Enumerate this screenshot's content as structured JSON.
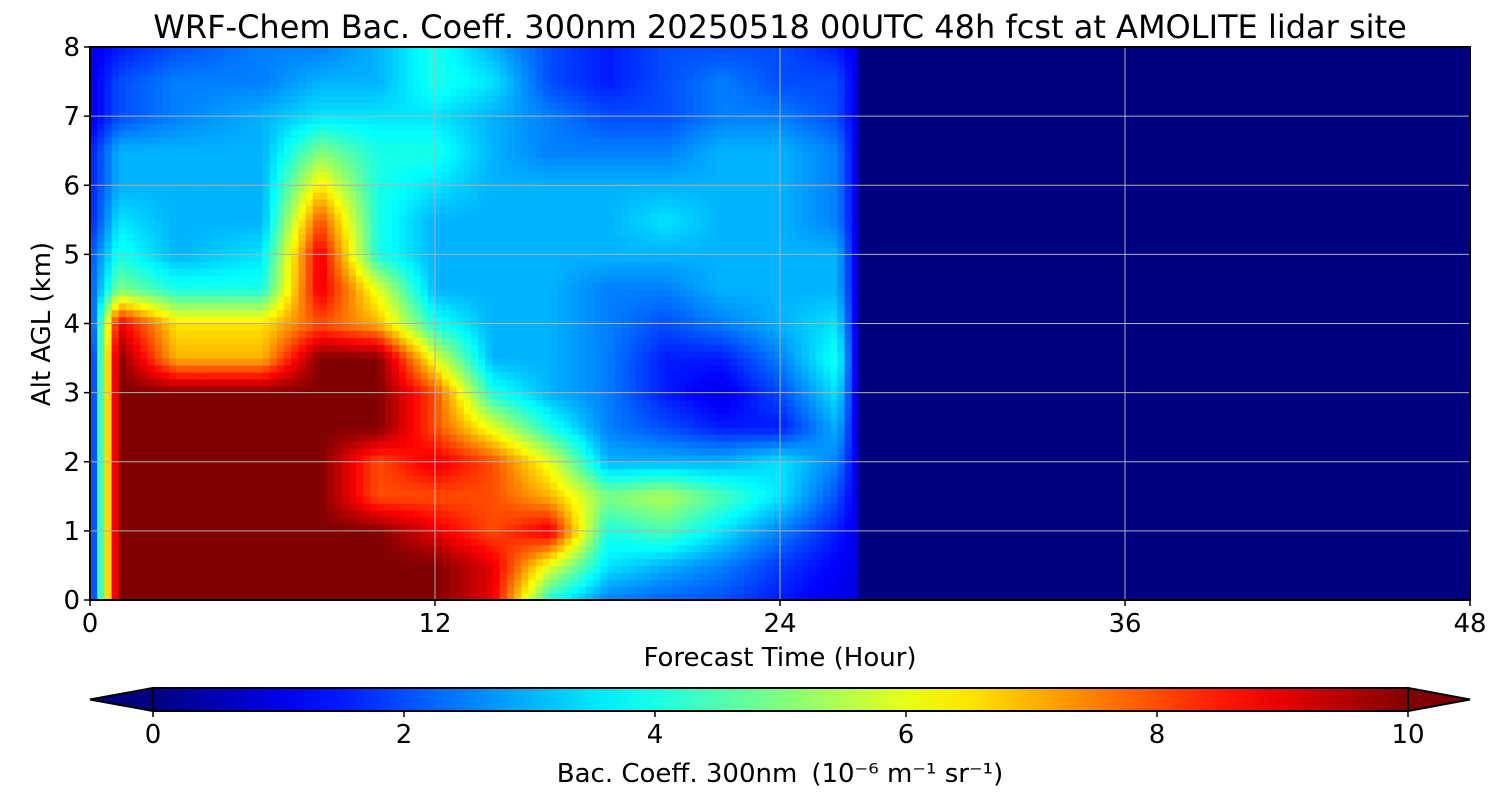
{
  "chart_data": {
    "type": "heatmap",
    "title": "WRF-Chem Bac. Coeff. 300nm  20250518 00UTC 48h fcst at AMOLITE lidar site",
    "xlabel": "Forecast Time (Hour)",
    "ylabel": "Alt AGL (km)",
    "xlim": [
      0,
      48
    ],
    "ylim": [
      0,
      8
    ],
    "xticks": [
      0,
      12,
      24,
      36,
      48
    ],
    "yticks": [
      0,
      1,
      2,
      3,
      4,
      5,
      6,
      7,
      8
    ],
    "grid": true,
    "colormap": "jet",
    "colorbar": {
      "label": "Bac. Coeff. 300nm",
      "unit": "(10⁻⁶ m⁻¹ sr⁻¹)",
      "range": [
        0,
        10
      ],
      "ticks": [
        0,
        2,
        4,
        6,
        8,
        10
      ],
      "extend": "both",
      "orientation": "horizontal"
    },
    "data_end_hour": 26.7,
    "x": [
      0,
      1,
      3,
      6,
      8,
      10,
      12,
      14,
      16,
      18,
      20,
      22,
      24,
      26,
      26.7
    ],
    "y": [
      0,
      0.5,
      1,
      1.5,
      2,
      2.5,
      3,
      3.5,
      4,
      4.5,
      5,
      5.5,
      6,
      6.5,
      7,
      7.5,
      8
    ],
    "z": [
      [
        1.0,
        10,
        10,
        10,
        10,
        10,
        10,
        9,
        4,
        2.5,
        2.2,
        2.0,
        1.5,
        1.0,
        1.0
      ],
      [
        1.0,
        10,
        10,
        10,
        10,
        10,
        10,
        9,
        6,
        3.5,
        3.0,
        2.5,
        1.8,
        1.2,
        1.0
      ],
      [
        1.0,
        10,
        10,
        10,
        10,
        10,
        9,
        8,
        9,
        4,
        4.5,
        3.5,
        2.5,
        1.5,
        1.0
      ],
      [
        1.0,
        10,
        10,
        10,
        10,
        8,
        8,
        8,
        7,
        5,
        5.5,
        4.5,
        3.5,
        2.0,
        1.0
      ],
      [
        1.0,
        10,
        10,
        10,
        10,
        8,
        9,
        8,
        6,
        3,
        3,
        3,
        3.5,
        2.5,
        1.0
      ],
      [
        1.0,
        10,
        10,
        10,
        10,
        10,
        8,
        6,
        4,
        2.5,
        2,
        1.5,
        1.5,
        3.0,
        1.0
      ],
      [
        1.0,
        10,
        10,
        10,
        10,
        10,
        8,
        4,
        3,
        2.5,
        1.5,
        1.0,
        2.0,
        3.5,
        1.0
      ],
      [
        1.0,
        10,
        7,
        7,
        10,
        10,
        6,
        3,
        3,
        2.5,
        1.5,
        1.5,
        2.5,
        4.0,
        1.0
      ],
      [
        1.5,
        9,
        6.5,
        6.5,
        8,
        7,
        4,
        3,
        3,
        2.5,
        2,
        2.5,
        3,
        3.5,
        1.0
      ],
      [
        2.0,
        5,
        4,
        4,
        9,
        6,
        3,
        3,
        3,
        2.5,
        2.5,
        3,
        3,
        3.0,
        1.0
      ],
      [
        2.0,
        4,
        3,
        3.5,
        9,
        4,
        3,
        3,
        3,
        3,
        3,
        3,
        3,
        3.0,
        1.0
      ],
      [
        1.5,
        3.5,
        3,
        3,
        8,
        4,
        3,
        3,
        3,
        3,
        3.5,
        3,
        3,
        2.5,
        1.0
      ],
      [
        1.5,
        3,
        3,
        3,
        6.5,
        4,
        3.5,
        3,
        3,
        3,
        3,
        3,
        3,
        2.5,
        1.0
      ],
      [
        1.5,
        3,
        3,
        3,
        5,
        4,
        4,
        3,
        2.5,
        2.5,
        2.5,
        3,
        3,
        2.5,
        1.0
      ],
      [
        1.0,
        2,
        2.5,
        3,
        3.5,
        3.5,
        3.5,
        3,
        2.5,
        2,
        2,
        2.5,
        2.5,
        2.0,
        1.0
      ],
      [
        1.0,
        2,
        2.5,
        2.5,
        3,
        3,
        4,
        3.5,
        2,
        1.5,
        2,
        2.5,
        2,
        2.0,
        1.0
      ],
      [
        1.0,
        1.5,
        2,
        2.5,
        2.5,
        3,
        4,
        3,
        2,
        1.5,
        2,
        2,
        2,
        1.5,
        1.0
      ]
    ],
    "fill_value": 0
  }
}
